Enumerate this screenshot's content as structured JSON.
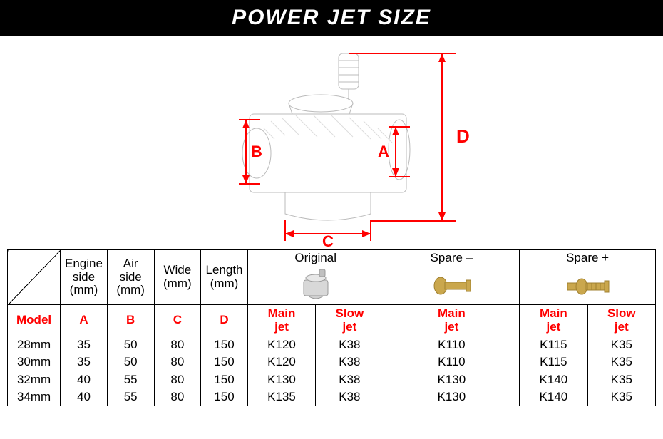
{
  "title": "POWER JET SIZE",
  "colors": {
    "header_bg": "#000000",
    "header_text": "#ffffff",
    "accent": "#ff0000",
    "border": "#000000",
    "bg": "#ffffff",
    "brass": "#c9a84a",
    "brass_dark": "#a08030",
    "carb_gray": "#cccccc",
    "carb_dark": "#999999"
  },
  "diagram_labels": {
    "A": "A",
    "B": "B",
    "C": "C",
    "D": "D"
  },
  "headers": {
    "engine_side": "Engine\nside\n(mm)",
    "air_side": "Air\nside\n(mm)",
    "wide": "Wide\n(mm)",
    "length": "Length\n(mm)",
    "original": "Original",
    "spare_minus": "Spare –",
    "spare_plus": "Spare +",
    "model": "Model",
    "A": "A",
    "B": "B",
    "C": "C",
    "D": "D",
    "main_jet": "Main\njet",
    "slow_jet": "Slow\njet"
  },
  "rows": [
    {
      "model": "28mm",
      "A": "35",
      "B": "50",
      "C": "80",
      "D": "150",
      "orig_main": "K120",
      "orig_slow": "K38",
      "spm_main": "K110",
      "spp_main": "K115",
      "spp_slow": "K35"
    },
    {
      "model": "30mm",
      "A": "35",
      "B": "50",
      "C": "80",
      "D": "150",
      "orig_main": "K120",
      "orig_slow": "K38",
      "spm_main": "K110",
      "spp_main": "K115",
      "spp_slow": "K35"
    },
    {
      "model": "32mm",
      "A": "40",
      "B": "55",
      "C": "80",
      "D": "150",
      "orig_main": "K130",
      "orig_slow": "K38",
      "spm_main": "K130",
      "spp_main": "K140",
      "spp_slow": "K35"
    },
    {
      "model": "34mm",
      "A": "40",
      "B": "55",
      "C": "80",
      "D": "150",
      "orig_main": "K135",
      "orig_slow": "K38",
      "spm_main": "K130",
      "spp_main": "K140",
      "spp_slow": "K35"
    }
  ]
}
